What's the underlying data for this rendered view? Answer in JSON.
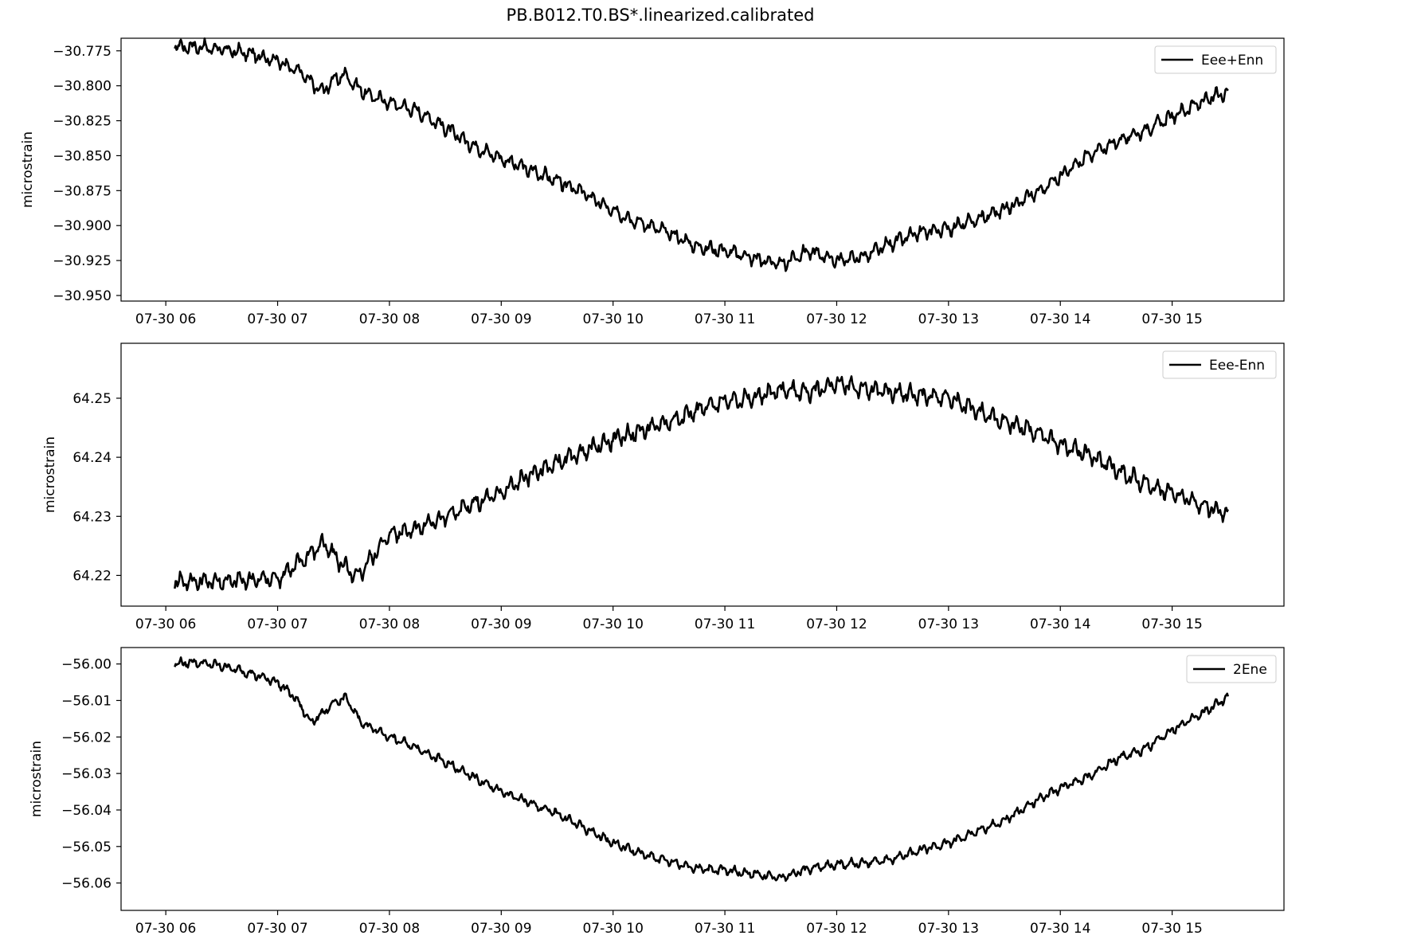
{
  "figure": {
    "title": "PB.B012.T0.BS*.linearized.calibrated"
  },
  "chart_data": [
    {
      "type": "line",
      "title": "",
      "xlabel": "",
      "ylabel": "microstrain",
      "x_ticks": [
        "07-30 06",
        "07-30 07",
        "07-30 08",
        "07-30 09",
        "07-30 10",
        "07-30 11",
        "07-30 12",
        "07-30 13",
        "07-30 14",
        "07-30 15"
      ],
      "x_tick_hours": [
        6,
        7,
        8,
        9,
        10,
        11,
        12,
        13,
        14,
        15
      ],
      "xlim_hours": [
        5.6,
        16.0
      ],
      "ylim": [
        -30.954,
        -30.766
      ],
      "y_ticks": [
        -30.775,
        -30.8,
        -30.825,
        -30.85,
        -30.875,
        -30.9,
        -30.925,
        -30.95
      ],
      "y_tick_labels": [
        "−30.775",
        "−30.800",
        "−30.825",
        "−30.850",
        "−30.875",
        "−30.900",
        "−30.925",
        "−30.950"
      ],
      "legend": "upper right",
      "grid": false,
      "color": "#000000",
      "series": [
        {
          "name": "Eee+Enn",
          "x_hours": [
            6.08,
            6.25,
            6.5,
            6.75,
            7.0,
            7.1,
            7.2,
            7.3,
            7.4,
            7.5,
            7.6,
            7.7,
            7.8,
            8.0,
            8.25,
            8.5,
            8.75,
            9.0,
            9.25,
            9.5,
            9.75,
            10.0,
            10.25,
            10.5,
            10.75,
            11.0,
            11.25,
            11.5,
            11.75,
            12.0,
            12.25,
            12.5,
            12.75,
            13.0,
            13.25,
            13.5,
            13.75,
            14.0,
            14.25,
            14.5,
            14.75,
            15.0,
            15.25,
            15.5
          ],
          "y": [
            -30.772,
            -30.772,
            -30.774,
            -30.777,
            -30.782,
            -30.786,
            -30.79,
            -30.798,
            -30.804,
            -30.796,
            -30.792,
            -30.8,
            -30.806,
            -30.812,
            -30.818,
            -30.83,
            -30.843,
            -30.852,
            -30.86,
            -30.868,
            -30.877,
            -30.89,
            -30.898,
            -30.905,
            -30.915,
            -30.918,
            -30.923,
            -30.928,
            -30.918,
            -30.925,
            -30.922,
            -30.912,
            -30.905,
            -30.902,
            -30.896,
            -30.888,
            -30.878,
            -30.865,
            -30.85,
            -30.84,
            -30.832,
            -30.822,
            -30.812,
            -30.804
          ],
          "noise_amplitude": 0.006
        }
      ]
    },
    {
      "type": "line",
      "title": "",
      "xlabel": "",
      "ylabel": "microstrain",
      "x_ticks": [
        "07-30 06",
        "07-30 07",
        "07-30 08",
        "07-30 09",
        "07-30 10",
        "07-30 11",
        "07-30 12",
        "07-30 13",
        "07-30 14",
        "07-30 15"
      ],
      "x_tick_hours": [
        6,
        7,
        8,
        9,
        10,
        11,
        12,
        13,
        14,
        15
      ],
      "xlim_hours": [
        5.6,
        16.0
      ],
      "ylim": [
        64.2148,
        64.2593
      ],
      "y_ticks": [
        64.22,
        64.23,
        64.24,
        64.25
      ],
      "y_tick_labels": [
        "64.22",
        "64.23",
        "64.24",
        "64.25"
      ],
      "legend": "upper right",
      "grid": false,
      "color": "#000000",
      "series": [
        {
          "name": "Eee-Enn",
          "x_hours": [
            6.08,
            6.5,
            7.0,
            7.25,
            7.4,
            7.6,
            7.7,
            8.0,
            8.25,
            8.5,
            8.75,
            9.0,
            9.25,
            9.5,
            9.75,
            10.0,
            10.25,
            10.5,
            10.75,
            11.0,
            11.25,
            11.5,
            11.75,
            12.0,
            12.25,
            12.5,
            12.75,
            13.0,
            13.25,
            13.5,
            13.75,
            14.0,
            14.25,
            14.5,
            14.75,
            15.0,
            15.25,
            15.5
          ],
          "y": [
            64.219,
            64.219,
            64.2195,
            64.223,
            64.2255,
            64.2215,
            64.2195,
            64.227,
            64.228,
            64.23,
            64.232,
            64.234,
            64.237,
            64.239,
            64.241,
            64.243,
            64.2445,
            64.246,
            64.248,
            64.2495,
            64.25,
            64.2515,
            64.251,
            64.2525,
            64.2515,
            64.251,
            64.2505,
            64.25,
            64.248,
            64.246,
            64.2445,
            64.242,
            64.2405,
            64.238,
            64.2355,
            64.234,
            64.232,
            64.2305
          ],
          "noise_amplitude": 0.0018
        }
      ]
    },
    {
      "type": "line",
      "title": "",
      "xlabel": "",
      "ylabel": "microstrain",
      "x_ticks": [
        "07-30 06",
        "07-30 07",
        "07-30 08",
        "07-30 09",
        "07-30 10",
        "07-30 11",
        "07-30 12",
        "07-30 13",
        "07-30 14",
        "07-30 15"
      ],
      "x_tick_hours": [
        6,
        7,
        8,
        9,
        10,
        11,
        12,
        13,
        14,
        15
      ],
      "xlim_hours": [
        5.6,
        16.0
      ],
      "ylim": [
        -56.0675,
        -55.9955
      ],
      "y_ticks": [
        -56.0,
        -56.01,
        -56.02,
        -56.03,
        -56.04,
        -56.05,
        -56.06
      ],
      "y_tick_labels": [
        "−56.00",
        "−56.01",
        "−56.02",
        "−56.03",
        "−56.04",
        "−56.05",
        "−56.06"
      ],
      "legend": "upper right",
      "grid": false,
      "color": "#000000",
      "series": [
        {
          "name": "2Ene",
          "x_hours": [
            6.08,
            6.25,
            6.5,
            6.75,
            7.0,
            7.15,
            7.3,
            7.5,
            7.6,
            7.75,
            8.0,
            8.25,
            8.5,
            8.75,
            9.0,
            9.25,
            9.5,
            9.75,
            10.0,
            10.25,
            10.5,
            10.75,
            11.0,
            11.25,
            11.5,
            11.75,
            12.0,
            12.25,
            12.5,
            12.75,
            13.0,
            13.25,
            13.5,
            13.75,
            14.0,
            14.25,
            14.5,
            14.75,
            15.0,
            15.25,
            15.5
          ],
          "y": [
            -56.0,
            -55.9995,
            -56.0005,
            -56.0025,
            -56.005,
            -56.009,
            -56.016,
            -56.011,
            -56.009,
            -56.016,
            -56.02,
            -56.023,
            -56.027,
            -56.031,
            -56.035,
            -56.038,
            -56.041,
            -56.045,
            -56.049,
            -56.052,
            -56.054,
            -56.056,
            -56.0565,
            -56.0575,
            -56.0585,
            -56.056,
            -56.055,
            -56.0545,
            -56.0535,
            -56.051,
            -56.049,
            -56.046,
            -56.043,
            -56.038,
            -56.034,
            -56.031,
            -56.026,
            -56.0235,
            -56.018,
            -56.014,
            -56.009
          ],
          "noise_amplitude": 0.0015
        }
      ]
    }
  ]
}
